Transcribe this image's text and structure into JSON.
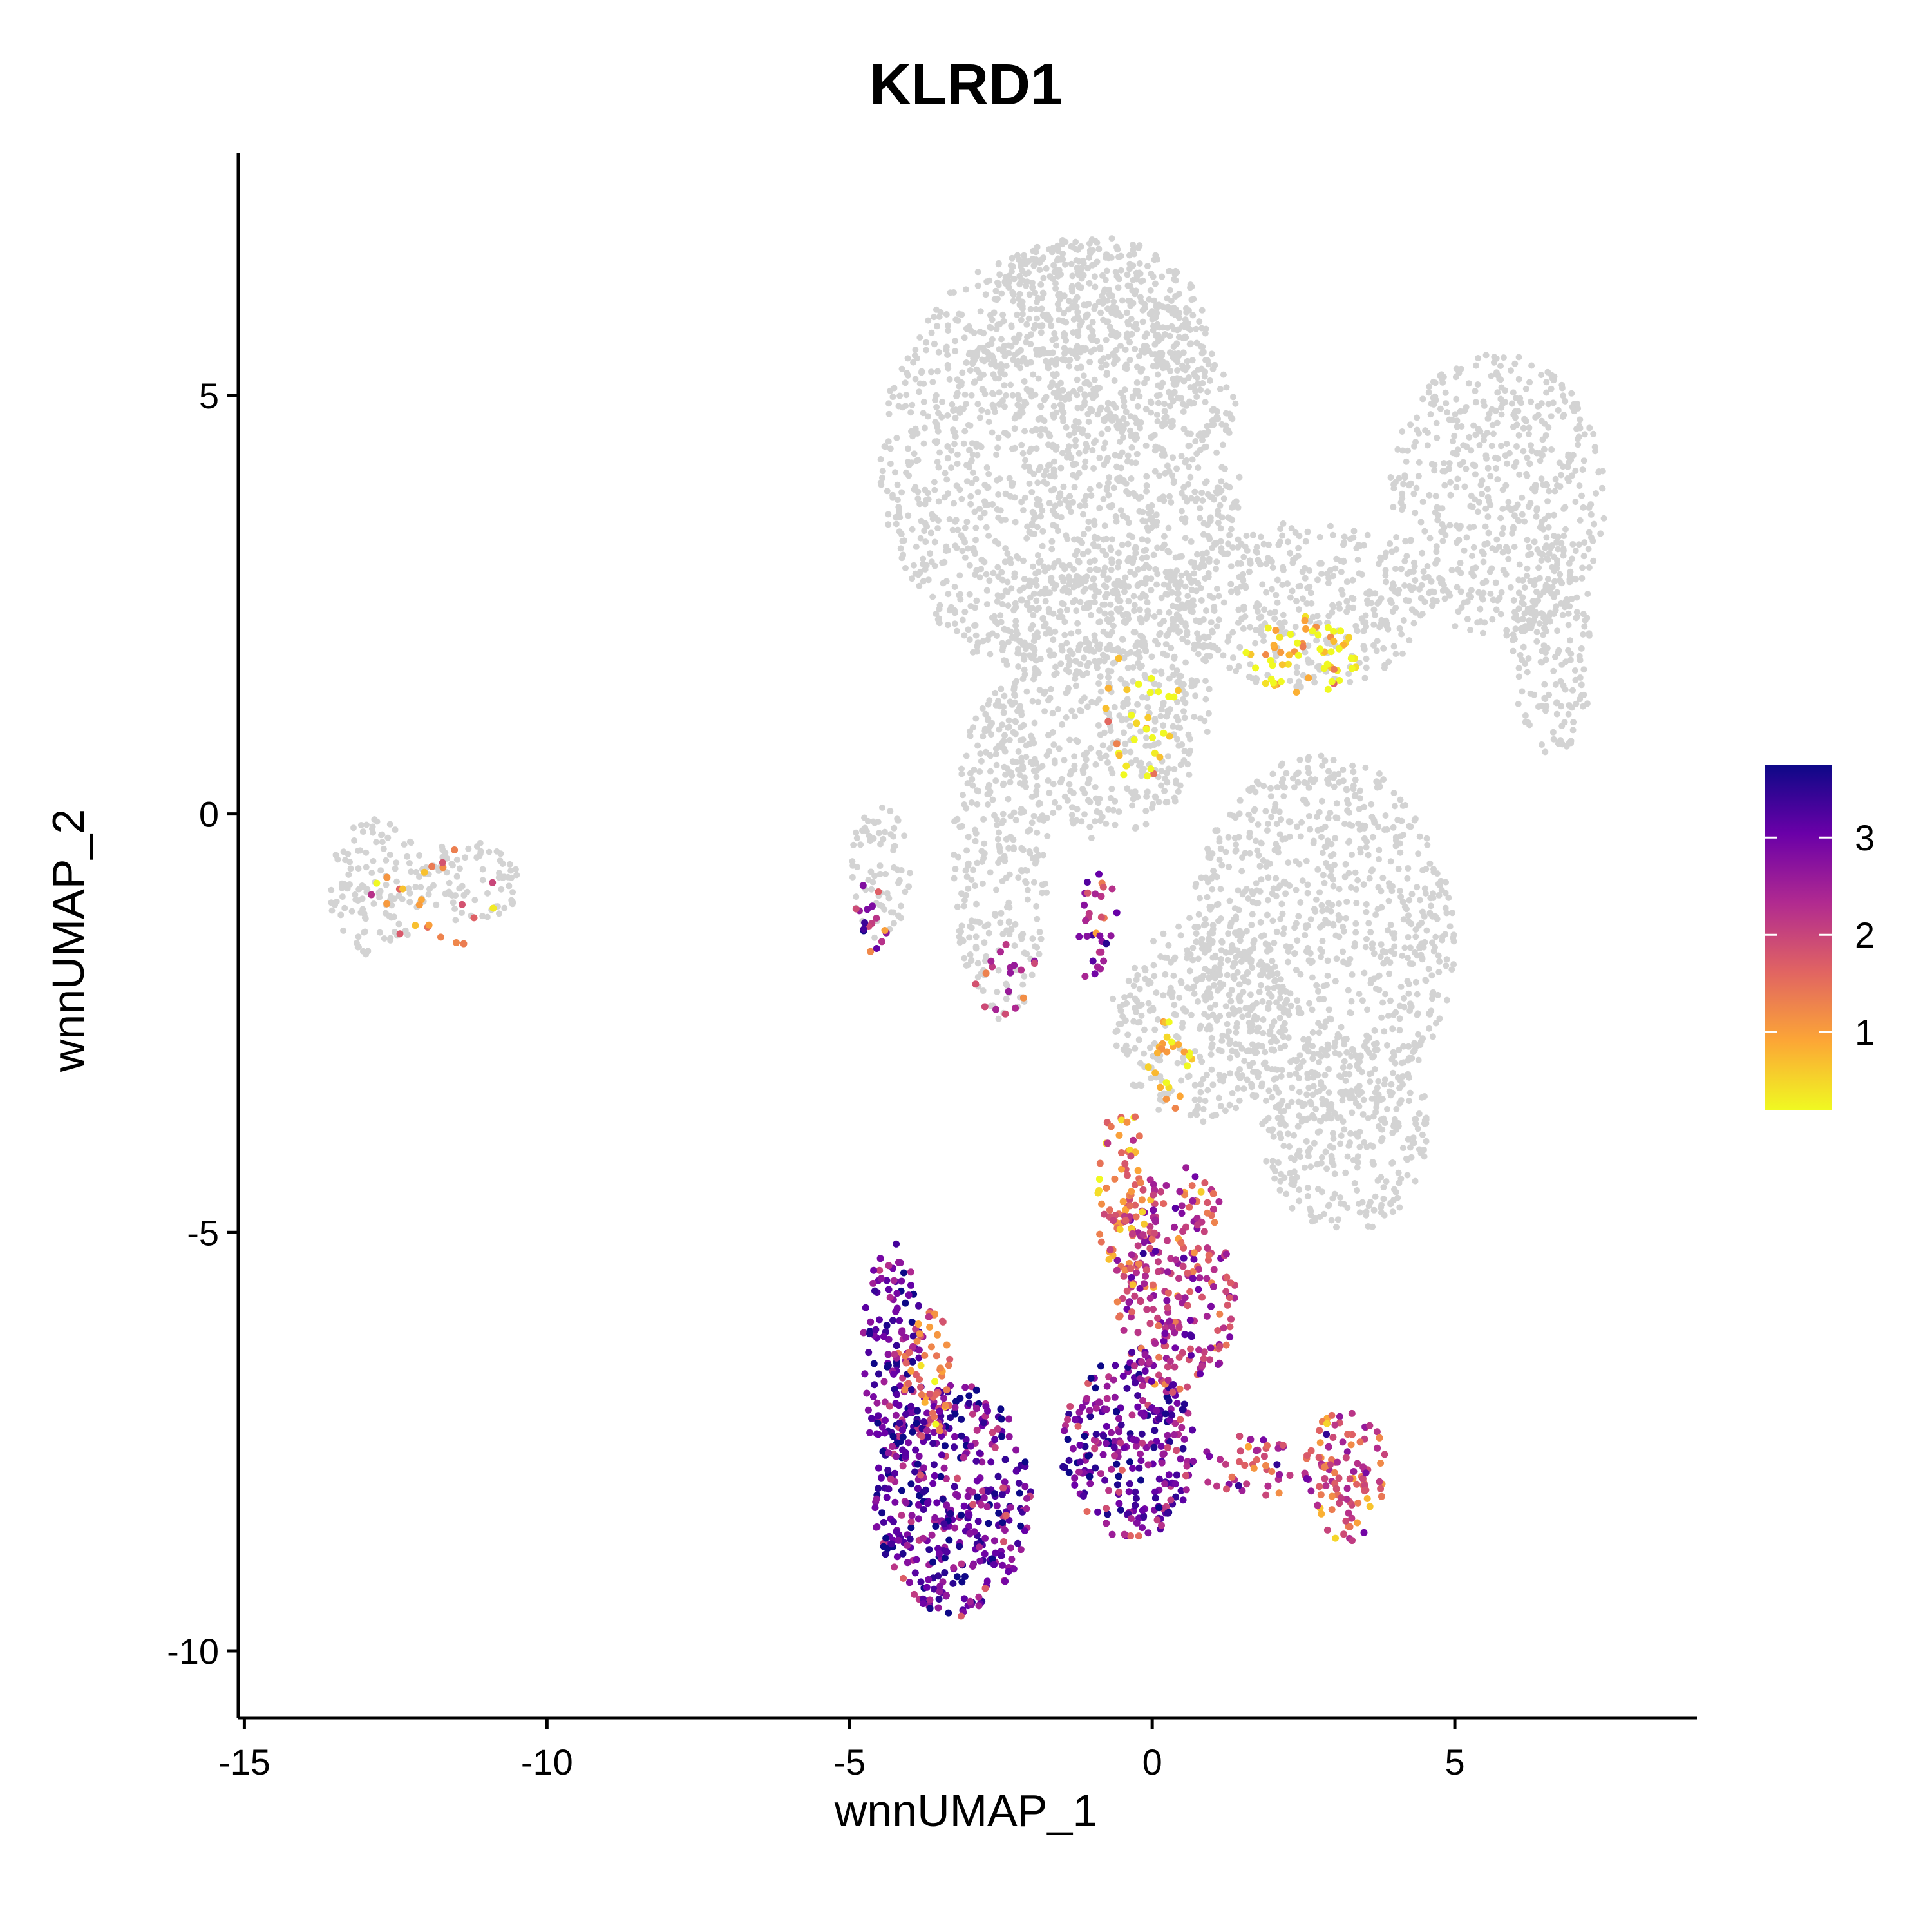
{
  "chart_data": {
    "type": "scatter",
    "title": "KLRD1",
    "xlabel": "wnnUMAP_1",
    "ylabel": "wnnUMAP_2",
    "xlim": [
      -15.1,
      9.0
    ],
    "ylim": [
      -10.8,
      7.9
    ],
    "xticks": [
      -15,
      -10,
      -5,
      0,
      5
    ],
    "xtick_labels": [
      "-15",
      "-10",
      "-5",
      "0",
      "5"
    ],
    "yticks": [
      -10,
      -5,
      0,
      5
    ],
    "ytick_labels": [
      "-10",
      "-5",
      "0",
      "5"
    ],
    "grid": false,
    "background_color": "#d3d3d3",
    "colorscale": {
      "name": "plasma (reversed)",
      "min": 0.2,
      "max": 3.75,
      "stops": [
        "#f0f921",
        "#fca636",
        "#e16462",
        "#b12a90",
        "#6a00a8",
        "#0d0887"
      ],
      "ticks": [
        1,
        2,
        3
      ],
      "tick_labels": [
        "1",
        "2",
        "3"
      ],
      "legend_position": "right"
    },
    "background_regions": [
      {
        "name": "upper-left lobe",
        "cx": -1.5,
        "cy": 4.2,
        "rx": 3.0,
        "ry": 2.6
      },
      {
        "name": "upper lobe top",
        "cx": -1.0,
        "cy": 5.6,
        "rx": 2.0,
        "ry": 1.3
      },
      {
        "name": "central stem",
        "cx": -0.8,
        "cy": 1.5,
        "rx": 1.8,
        "ry": 1.8
      },
      {
        "name": "right arm",
        "cx": 2.5,
        "cy": 2.5,
        "rx": 2.2,
        "ry": 1.0
      },
      {
        "name": "upper-right lobe",
        "cx": 5.7,
        "cy": 3.8,
        "rx": 1.8,
        "ry": 1.7
      },
      {
        "name": "right hook",
        "cx": 6.6,
        "cy": 2.0,
        "rx": 0.7,
        "ry": 1.3
      },
      {
        "name": "middle-right mass",
        "cx": 2.8,
        "cy": -1.5,
        "rx": 2.2,
        "ry": 2.2
      },
      {
        "name": "lower-right mass",
        "cx": 3.2,
        "cy": -3.8,
        "rx": 1.4,
        "ry": 1.2
      },
      {
        "name": "connector",
        "cx": 0.8,
        "cy": -2.5,
        "rx": 1.5,
        "ry": 1.2
      },
      {
        "name": "left strip",
        "cx": -2.5,
        "cy": -0.5,
        "rx": 0.8,
        "ry": 2.0
      },
      {
        "name": "far-left islet",
        "cx": -4.5,
        "cy": -0.7,
        "rx": 0.5,
        "ry": 0.8
      },
      {
        "name": "far-left small cluster",
        "cx": -12.8,
        "cy": -0.9,
        "rx": 0.8,
        "ry": 0.85
      },
      {
        "name": "far-left small cluster tail",
        "cx": -11.3,
        "cy": -0.8,
        "rx": 0.9,
        "ry": 0.5
      }
    ],
    "expression_regions": [
      {
        "name": "lower-left cluster",
        "cx": -3.3,
        "cy": -8.2,
        "rx": 1.3,
        "ry": 1.4,
        "level": 3.0,
        "density": 1.0
      },
      {
        "name": "lower-left column",
        "cx": -4.3,
        "cy": -6.5,
        "rx": 0.5,
        "ry": 1.4,
        "level": 3.0,
        "density": 0.9
      },
      {
        "name": "lower-left column orange",
        "cx": -3.7,
        "cy": -6.7,
        "rx": 0.4,
        "ry": 0.8,
        "level": 1.4,
        "density": 0.8
      },
      {
        "name": "lower-middle cluster",
        "cx": -0.4,
        "cy": -7.6,
        "rx": 1.1,
        "ry": 1.1,
        "level": 2.9,
        "density": 1.0
      },
      {
        "name": "lower-middle column",
        "cx": 0.4,
        "cy": -5.6,
        "rx": 1.0,
        "ry": 1.4,
        "level": 2.2,
        "density": 0.85
      },
      {
        "name": "middle stream",
        "cx": -0.5,
        "cy": -4.6,
        "rx": 0.4,
        "ry": 1.2,
        "level": 1.4,
        "density": 0.7
      },
      {
        "name": "lower-right cluster",
        "cx": 3.2,
        "cy": -7.9,
        "rx": 0.7,
        "ry": 0.8,
        "level": 1.8,
        "density": 0.85
      },
      {
        "name": "lower-right bridge",
        "cx": 1.6,
        "cy": -7.8,
        "rx": 0.8,
        "ry": 0.4,
        "level": 1.9,
        "density": 0.6
      },
      {
        "name": "left islet",
        "cx": -4.6,
        "cy": -1.2,
        "rx": 0.3,
        "ry": 0.5,
        "level": 2.3,
        "density": 0.5
      },
      {
        "name": "middle pocket",
        "cx": -0.9,
        "cy": -1.4,
        "rx": 0.35,
        "ry": 0.7,
        "level": 2.4,
        "density": 0.6
      },
      {
        "name": "left-middle pocket",
        "cx": -2.4,
        "cy": -2.0,
        "rx": 0.6,
        "ry": 0.45,
        "level": 2.2,
        "density": 0.3
      },
      {
        "name": "upper-right arm yellow",
        "cx": 2.5,
        "cy": 1.9,
        "rx": 1.0,
        "ry": 0.5,
        "level": 0.4,
        "density": 0.55
      },
      {
        "name": "central yellow",
        "cx": -0.2,
        "cy": 1.2,
        "rx": 0.7,
        "ry": 0.8,
        "level": 0.5,
        "density": 0.25
      },
      {
        "name": "transition yellow",
        "cx": 0.3,
        "cy": -3.0,
        "rx": 0.4,
        "ry": 0.6,
        "level": 0.5,
        "density": 0.5
      },
      {
        "name": "small cluster dots",
        "cx": -11.8,
        "cy": -1.0,
        "rx": 1.2,
        "ry": 0.6,
        "level": 1.3,
        "density": 0.15
      }
    ]
  }
}
